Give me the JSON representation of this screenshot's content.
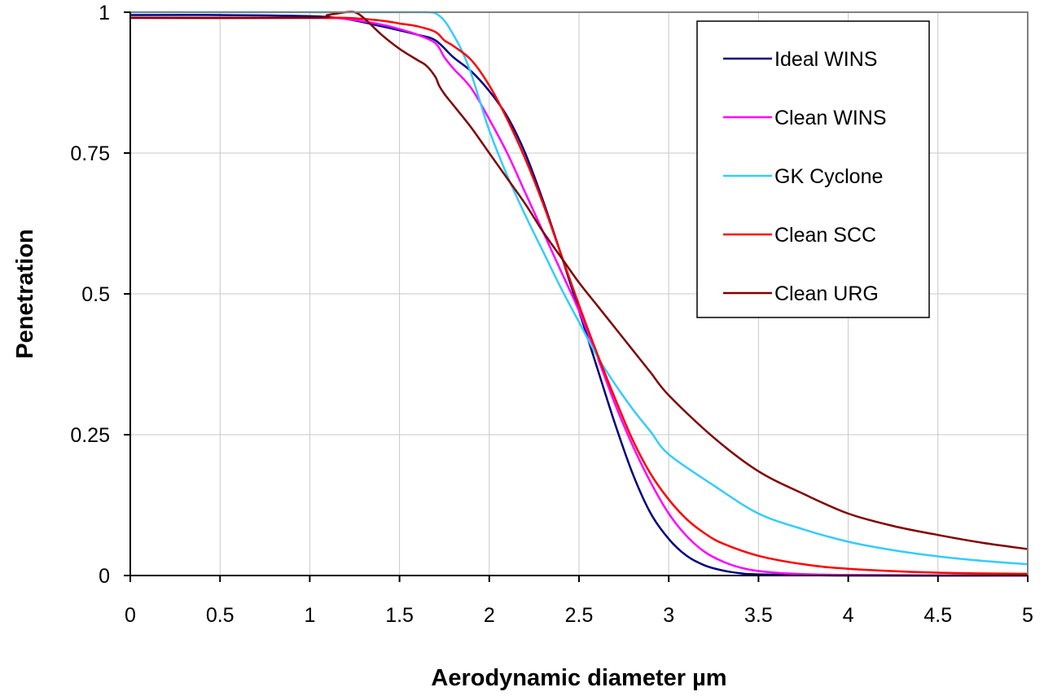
{
  "chart_data": {
    "type": "line",
    "title": "",
    "xlabel": "Aerodynamic diameter µm",
    "ylabel": "Penetration",
    "xlim": [
      0,
      5
    ],
    "ylim": [
      0,
      1
    ],
    "xticks": [
      "0",
      "0.5",
      "1",
      "1.5",
      "2",
      "2.5",
      "3",
      "3.5",
      "4",
      "4.5",
      "5"
    ],
    "yticks": [
      "0",
      "0.25",
      "0.5",
      "0.75",
      "1"
    ],
    "grid": true,
    "legend_position": "top-right",
    "series": [
      {
        "name": "Ideal WINS",
        "color": "#000080",
        "points": [
          [
            0,
            0.995
          ],
          [
            0.5,
            0.995
          ],
          [
            1,
            0.993
          ],
          [
            1.2,
            0.988
          ],
          [
            1.4,
            0.975
          ],
          [
            1.6,
            0.96
          ],
          [
            1.7,
            0.95
          ],
          [
            1.8,
            0.92
          ],
          [
            1.9,
            0.895
          ],
          [
            2.0,
            0.86
          ],
          [
            2.1,
            0.815
          ],
          [
            2.2,
            0.75
          ],
          [
            2.3,
            0.665
          ],
          [
            2.4,
            0.57
          ],
          [
            2.5,
            0.47
          ],
          [
            2.6,
            0.37
          ],
          [
            2.7,
            0.27
          ],
          [
            2.8,
            0.18
          ],
          [
            2.9,
            0.11
          ],
          [
            3.0,
            0.065
          ],
          [
            3.1,
            0.035
          ],
          [
            3.2,
            0.018
          ],
          [
            3.3,
            0.009
          ],
          [
            3.4,
            0.004
          ],
          [
            3.5,
            0.002
          ],
          [
            4.0,
            0
          ],
          [
            5,
            0
          ]
        ]
      },
      {
        "name": "Clean WINS",
        "color": "#FF00FF",
        "points": [
          [
            0,
            0.99
          ],
          [
            1,
            0.99
          ],
          [
            1.2,
            0.988
          ],
          [
            1.4,
            0.978
          ],
          [
            1.5,
            0.97
          ],
          [
            1.6,
            0.96
          ],
          [
            1.7,
            0.945
          ],
          [
            1.75,
            0.92
          ],
          [
            1.8,
            0.9
          ],
          [
            1.9,
            0.865
          ],
          [
            2.0,
            0.81
          ],
          [
            2.1,
            0.75
          ],
          [
            2.2,
            0.68
          ],
          [
            2.3,
            0.61
          ],
          [
            2.4,
            0.54
          ],
          [
            2.5,
            0.47
          ],
          [
            2.6,
            0.39
          ],
          [
            2.7,
            0.305
          ],
          [
            2.8,
            0.23
          ],
          [
            2.9,
            0.165
          ],
          [
            3.0,
            0.11
          ],
          [
            3.1,
            0.07
          ],
          [
            3.2,
            0.042
          ],
          [
            3.3,
            0.025
          ],
          [
            3.4,
            0.014
          ],
          [
            3.5,
            0.008
          ],
          [
            3.7,
            0.003
          ],
          [
            4.0,
            0.001
          ],
          [
            5,
            0
          ]
        ]
      },
      {
        "name": "GK Cyclone",
        "color": "#33CCFF",
        "points": [
          [
            0,
            1
          ],
          [
            1.5,
            1
          ],
          [
            1.6,
            1
          ],
          [
            1.65,
            1
          ],
          [
            1.7,
            0.998
          ],
          [
            1.75,
            0.985
          ],
          [
            1.8,
            0.96
          ],
          [
            1.85,
            0.93
          ],
          [
            1.9,
            0.89
          ],
          [
            1.95,
            0.84
          ],
          [
            2.0,
            0.79
          ],
          [
            2.1,
            0.71
          ],
          [
            2.2,
            0.64
          ],
          [
            2.3,
            0.575
          ],
          [
            2.4,
            0.51
          ],
          [
            2.5,
            0.45
          ],
          [
            2.6,
            0.39
          ],
          [
            2.7,
            0.34
          ],
          [
            2.8,
            0.295
          ],
          [
            2.9,
            0.255
          ],
          [
            3.0,
            0.215
          ],
          [
            3.25,
            0.16
          ],
          [
            3.5,
            0.11
          ],
          [
            3.75,
            0.082
          ],
          [
            4.0,
            0.06
          ],
          [
            4.25,
            0.045
          ],
          [
            4.5,
            0.034
          ],
          [
            4.75,
            0.026
          ],
          [
            5,
            0.02
          ]
        ]
      },
      {
        "name": "Clean SCC",
        "color": "#FF0000",
        "points": [
          [
            0,
            0.99
          ],
          [
            1,
            0.99
          ],
          [
            1.2,
            0.99
          ],
          [
            1.4,
            0.985
          ],
          [
            1.5,
            0.98
          ],
          [
            1.6,
            0.975
          ],
          [
            1.7,
            0.965
          ],
          [
            1.75,
            0.95
          ],
          [
            1.8,
            0.94
          ],
          [
            1.9,
            0.915
          ],
          [
            2.0,
            0.87
          ],
          [
            2.1,
            0.81
          ],
          [
            2.2,
            0.74
          ],
          [
            2.3,
            0.66
          ],
          [
            2.4,
            0.57
          ],
          [
            2.5,
            0.48
          ],
          [
            2.6,
            0.395
          ],
          [
            2.7,
            0.315
          ],
          [
            2.8,
            0.24
          ],
          [
            2.9,
            0.18
          ],
          [
            3.0,
            0.135
          ],
          [
            3.1,
            0.1
          ],
          [
            3.2,
            0.075
          ],
          [
            3.3,
            0.057
          ],
          [
            3.5,
            0.035
          ],
          [
            3.75,
            0.02
          ],
          [
            4.0,
            0.012
          ],
          [
            4.5,
            0.005
          ],
          [
            5,
            0.003
          ]
        ]
      },
      {
        "name": "Clean URG",
        "color": "#800000",
        "points": [
          [
            0,
            0.99
          ],
          [
            1,
            0.99
          ],
          [
            1.1,
            0.995
          ],
          [
            1.2,
            1.0
          ],
          [
            1.25,
            1.0
          ],
          [
            1.3,
            0.99
          ],
          [
            1.4,
            0.96
          ],
          [
            1.5,
            0.935
          ],
          [
            1.6,
            0.915
          ],
          [
            1.65,
            0.905
          ],
          [
            1.7,
            0.885
          ],
          [
            1.72,
            0.87
          ],
          [
            1.75,
            0.855
          ],
          [
            1.8,
            0.835
          ],
          [
            1.9,
            0.795
          ],
          [
            2.0,
            0.75
          ],
          [
            2.1,
            0.705
          ],
          [
            2.2,
            0.66
          ],
          [
            2.3,
            0.61
          ],
          [
            2.4,
            0.565
          ],
          [
            2.5,
            0.52
          ],
          [
            2.6,
            0.48
          ],
          [
            2.7,
            0.44
          ],
          [
            2.8,
            0.4
          ],
          [
            2.9,
            0.36
          ],
          [
            3.0,
            0.32
          ],
          [
            3.25,
            0.245
          ],
          [
            3.5,
            0.185
          ],
          [
            3.75,
            0.145
          ],
          [
            4.0,
            0.11
          ],
          [
            4.25,
            0.088
          ],
          [
            4.5,
            0.072
          ],
          [
            4.75,
            0.058
          ],
          [
            5,
            0.047
          ]
        ]
      }
    ]
  }
}
